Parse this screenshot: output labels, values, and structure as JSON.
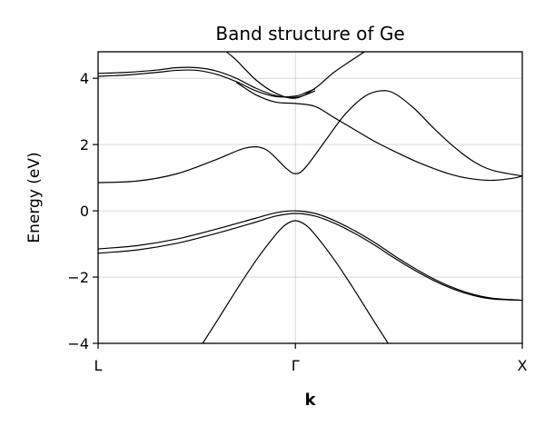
{
  "chart_data": {
    "type": "line",
    "title": "Band structure of Ge",
    "xlabel": "k",
    "ylabel": "Energy (eV)",
    "grid": true,
    "legend": "none",
    "xlim": [
      -1,
      1.15
    ],
    "ylim": [
      -4,
      4.8
    ],
    "y_ticks": [
      {
        "value": 4,
        "label": "4"
      },
      {
        "value": 2,
        "label": "2"
      },
      {
        "value": 0,
        "label": "0"
      },
      {
        "value": -2,
        "label": "−2"
      },
      {
        "value": -4,
        "label": "−4"
      }
    ],
    "x_ticks": [
      {
        "value": -1,
        "label": "L"
      },
      {
        "value": 0,
        "label": "Γ"
      },
      {
        "value": 1.15,
        "label": "X"
      }
    ],
    "series": [
      {
        "x": [
          -1,
          -0.85,
          -0.7,
          -0.6,
          -0.5,
          -0.4,
          -0.3,
          -0.2,
          -0.1,
          0,
          0.05,
          0.1
        ],
        "y": [
          4.15,
          4.18,
          4.25,
          4.32,
          4.32,
          4.22,
          4.0,
          3.7,
          3.48,
          3.42,
          3.5,
          3.62
        ]
      },
      {
        "x": [
          -1,
          -0.85,
          -0.7,
          -0.6,
          -0.5,
          -0.4,
          -0.3,
          -0.2,
          -0.1,
          0,
          0.05,
          0.1
        ],
        "y": [
          4.06,
          4.1,
          4.18,
          4.24,
          4.24,
          4.12,
          3.9,
          3.62,
          3.45,
          3.46,
          3.56,
          3.68
        ]
      },
      {
        "x": [
          -0.35,
          -0.3,
          -0.2,
          -0.1,
          0,
          0.1,
          0.2,
          0.35
        ],
        "y": [
          4.8,
          4.55,
          3.95,
          3.55,
          3.4,
          3.7,
          4.2,
          4.8
        ]
      },
      {
        "x": [
          -1,
          -0.8,
          -0.6,
          -0.4,
          -0.25,
          -0.15,
          -0.05,
          0,
          0.05,
          0.15,
          0.25,
          0.35,
          0.43,
          0.5,
          0.6,
          0.7,
          0.8,
          0.9,
          1.0,
          1.15
        ],
        "y": [
          0.85,
          0.9,
          1.12,
          1.55,
          1.9,
          1.85,
          1.3,
          1.12,
          1.3,
          2.1,
          2.9,
          3.45,
          3.62,
          3.55,
          3.1,
          2.5,
          1.95,
          1.5,
          1.22,
          1.05
        ]
      },
      {
        "x": [
          -0.3,
          -0.2,
          -0.1,
          0,
          0.1,
          0.2,
          0.3,
          0.4,
          0.5,
          0.6,
          0.7,
          0.8,
          0.9,
          1.0,
          1.1,
          1.15
        ],
        "y": [
          3.88,
          3.5,
          3.28,
          3.24,
          3.15,
          2.8,
          2.45,
          2.1,
          1.8,
          1.52,
          1.28,
          1.08,
          0.96,
          0.92,
          0.98,
          1.05
        ]
      },
      {
        "x": [
          -1,
          -0.8,
          -0.6,
          -0.4,
          -0.2,
          -0.1,
          0,
          0.1,
          0.2,
          0.3,
          0.4,
          0.5,
          0.6,
          0.7,
          0.8,
          0.9,
          1.0,
          1.15
        ],
        "y": [
          -1.15,
          -1.05,
          -0.85,
          -0.55,
          -0.22,
          -0.06,
          0,
          -0.08,
          -0.3,
          -0.6,
          -0.95,
          -1.35,
          -1.72,
          -2.05,
          -2.32,
          -2.52,
          -2.64,
          -2.7
        ]
      },
      {
        "x": [
          -1,
          -0.8,
          -0.6,
          -0.4,
          -0.2,
          -0.1,
          0,
          0.1,
          0.2,
          0.3,
          0.4,
          0.5,
          0.6,
          0.7,
          0.8,
          0.9,
          1.0,
          1.15
        ],
        "y": [
          -1.28,
          -1.18,
          -0.98,
          -0.68,
          -0.34,
          -0.16,
          -0.08,
          -0.16,
          -0.38,
          -0.68,
          -1.03,
          -1.42,
          -1.78,
          -2.1,
          -2.36,
          -2.55,
          -2.66,
          -2.7
        ]
      },
      {
        "x": [
          -0.47,
          -0.4,
          -0.3,
          -0.2,
          -0.1,
          -0.05,
          0,
          0.05,
          0.1,
          0.2,
          0.3,
          0.4,
          0.47
        ],
        "y": [
          -4.0,
          -3.35,
          -2.4,
          -1.5,
          -0.72,
          -0.42,
          -0.3,
          -0.42,
          -0.72,
          -1.5,
          -2.4,
          -3.35,
          -4.0
        ]
      }
    ]
  }
}
